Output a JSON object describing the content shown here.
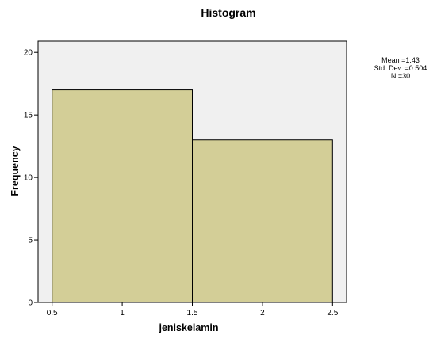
{
  "chart_data": {
    "type": "bar",
    "title": "Histogram",
    "xlabel": "jeniskelamin",
    "ylabel": "Frequency",
    "bins": [
      {
        "from": 0.5,
        "to": 1.5,
        "value": 17
      },
      {
        "from": 1.5,
        "to": 2.5,
        "value": 13
      }
    ],
    "xlim": [
      0.4,
      2.6
    ],
    "ylim": [
      0,
      20.9
    ],
    "x_ticks": [
      "0.5",
      "1",
      "1.5",
      "2",
      "2.5"
    ],
    "y_ticks": [
      "0",
      "5",
      "10",
      "15",
      "20"
    ],
    "stats": [
      "Mean =1.43",
      "Std. Dev. =0.504",
      "N =30"
    ],
    "grid": false,
    "legend": "none",
    "colors": {
      "plot_background": "#f0f0f0",
      "bar_fill": "#d3ce97",
      "bar_stroke": "#000000",
      "axis": "#000000"
    }
  }
}
